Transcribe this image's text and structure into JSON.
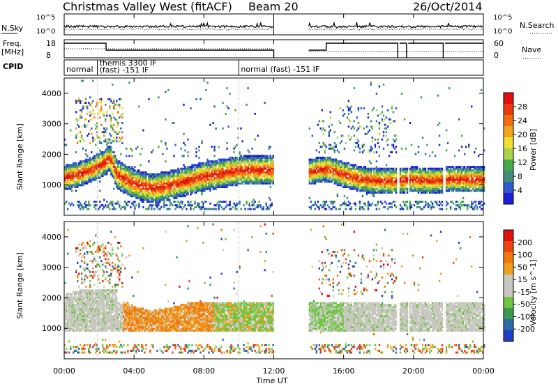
{
  "header": {
    "title": "Christmas Valley West (fitACF)",
    "beam": "Beam 20",
    "date": "26/Oct/2014"
  },
  "top_panels": {
    "nsky_label": "N.Sky",
    "nsky_ticks": [
      "10^5",
      "10^0"
    ],
    "nsearch_label": "N.Search",
    "nsearch_ticks": [
      "10^5",
      "10^0"
    ],
    "freq_label": "Freq.",
    "freq_unit": "[MHz]",
    "freq_ticks": [
      "18",
      "8"
    ],
    "nave_label": "Nave",
    "nave_ticks": [
      "60",
      "0"
    ],
    "cpid_label": "CPID",
    "cpid_segments": [
      {
        "text": "normal",
        "start": 0.0
      },
      {
        "text": "themis 3300 IF",
        "start": 1.9
      },
      {
        "text": "(fast) -151 IF",
        "start": 1.9
      },
      {
        "text": "normal (fast) -151 IF",
        "start": 10.0
      }
    ],
    "cpid_boundaries": [
      1.9,
      10.0
    ]
  },
  "colors": {
    "power_scale": [
      "#1f1fd8",
      "#2d5ad0",
      "#3f8f7a",
      "#46a94a",
      "#a8d44c",
      "#f0e030",
      "#f2a41f",
      "#f06e12",
      "#ec3a10",
      "#e01010"
    ],
    "velocity_scale": [
      "#2040c8",
      "#2c6aa8",
      "#3a9a4c",
      "#6cc640",
      "#c8c8c0",
      "#c8c8c0",
      "#f0a020",
      "#f07810",
      "#ec4410",
      "#e01010"
    ]
  },
  "chart_data": [
    {
      "type": "heatmap",
      "name_panel": "power",
      "x": {
        "label": "",
        "range_hours": [
          0,
          24
        ],
        "tick_labels": [
          "00:00",
          "04:00",
          "08:00",
          "12:00",
          "16:00",
          "20:00",
          "00:00"
        ]
      },
      "y": {
        "label": "Slant Range [km]",
        "range_km": [
          0,
          4500
        ],
        "tick_labels": [
          "1000",
          "2000",
          "3000",
          "4000"
        ]
      },
      "colorbar": {
        "label": "Power [dB]",
        "range": [
          0,
          30
        ],
        "tick_labels": [
          "4",
          "8",
          "12",
          "16",
          "20",
          "24",
          "28"
        ]
      },
      "data_gap_hours": [
        12.0,
        14.0
      ],
      "band_center_km": [
        [
          0.0,
          1200
        ],
        [
          1.0,
          1350
        ],
        [
          2.0,
          1600
        ],
        [
          2.6,
          1850
        ],
        [
          3.0,
          1300
        ],
        [
          4.0,
          1000
        ],
        [
          5.0,
          850
        ],
        [
          6.0,
          950
        ],
        [
          7.0,
          1100
        ],
        [
          8.0,
          1250
        ],
        [
          9.0,
          1350
        ],
        [
          10.0,
          1450
        ],
        [
          11.0,
          1450
        ],
        [
          12.0,
          1450
        ],
        [
          14.0,
          1400
        ],
        [
          15.0,
          1500
        ],
        [
          16.0,
          1300
        ],
        [
          17.0,
          1150
        ],
        [
          18.0,
          1100
        ],
        [
          19.0,
          1100
        ],
        [
          20.0,
          1150
        ],
        [
          21.0,
          1100
        ],
        [
          22.0,
          1150
        ],
        [
          23.0,
          1150
        ],
        [
          24.0,
          1150
        ]
      ]
    },
    {
      "type": "heatmap",
      "name_panel": "velocity",
      "x": {
        "label": "Time UT",
        "range_hours": [
          0,
          24
        ],
        "tick_labels": [
          "00:00",
          "04:00",
          "08:00",
          "12:00",
          "16:00",
          "20:00",
          "00:00"
        ]
      },
      "y": {
        "label": "Slant Range [km]",
        "range_km": [
          0,
          4500
        ],
        "tick_labels": [
          "1000",
          "2000",
          "3000",
          "4000"
        ]
      },
      "colorbar": {
        "label": "Velocity [m s^-1]",
        "range": [
          -250,
          250
        ],
        "tick_labels": [
          "200",
          "100",
          "50",
          "15",
          "-15",
          "-50",
          "-100",
          "-200"
        ]
      },
      "data_gap_hours": [
        12.0,
        14.0
      ]
    }
  ]
}
